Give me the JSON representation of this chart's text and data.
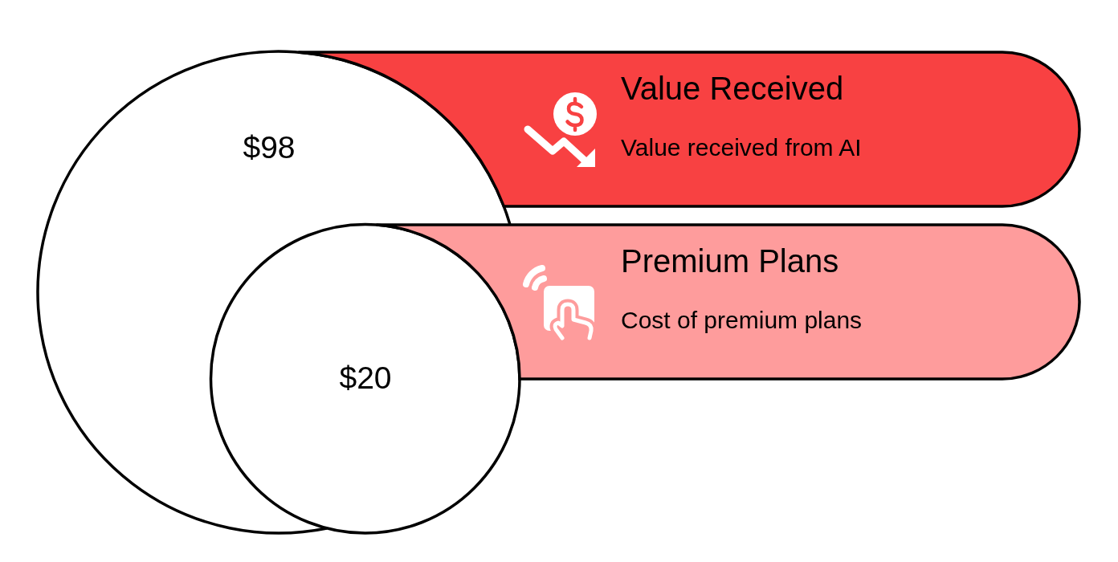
{
  "chart_data": {
    "type": "other",
    "categories": [
      "Value Received",
      "Premium Plans"
    ],
    "values": [
      98,
      20
    ],
    "value_labels": [
      "$98",
      "$20"
    ],
    "colors": [
      "#f84142",
      "#fe9c9c"
    ],
    "annotations": [
      "Value received from AI",
      "Cost of premium plans"
    ]
  }
}
